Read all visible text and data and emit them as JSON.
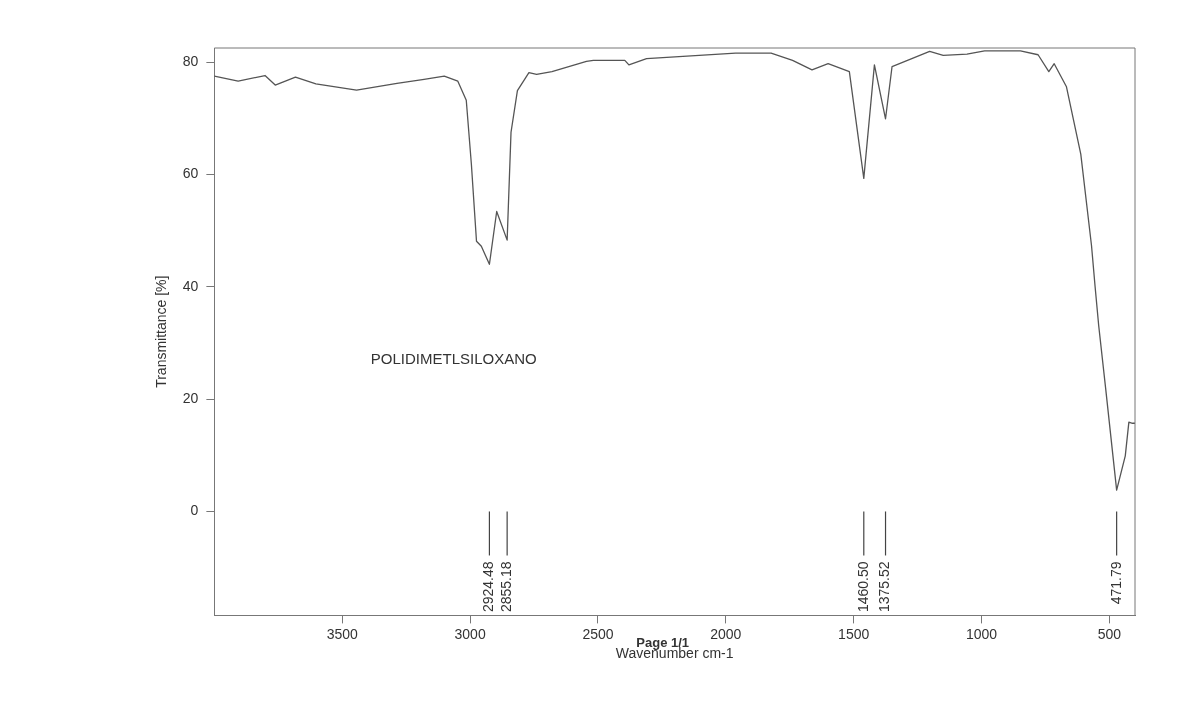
{
  "chart_data": {
    "type": "line",
    "xlabel": "Wavenumber cm-1",
    "ylabel": "Transmittance [%]",
    "xlim": [
      4000,
      400
    ],
    "xticks": [
      3500,
      3000,
      2500,
      2000,
      1500,
      1000,
      500
    ],
    "ylim": [
      -18.5,
      82.5
    ],
    "yticks": [
      0,
      20,
      40,
      60,
      80
    ],
    "marker": "none",
    "line_style": "solid",
    "series": [
      {
        "color": "#555555",
        "x": [
          4000,
          3907,
          3802,
          3762,
          3683,
          3603,
          3444,
          3286,
          3180,
          3101,
          3048,
          3015,
          2995,
          2975,
          2956,
          2924.48,
          2896,
          2855.18,
          2840,
          2815,
          2770,
          2740,
          2680,
          2545,
          2518,
          2395,
          2379,
          2310,
          1962,
          1823,
          1739,
          1663,
          1600,
          1517,
          1460.5,
          1419,
          1375.52,
          1350,
          1203,
          1150,
          1057,
          988,
          848,
          779,
          737,
          716,
          668,
          612,
          570,
          556,
          542,
          515,
          471.79,
          438,
          424,
          410,
          400
        ],
        "values": [
          77.5,
          76.6,
          77.6,
          75.9,
          77.3,
          76.1,
          75.0,
          76.2,
          76.9,
          77.5,
          76.6,
          73.2,
          61.8,
          48.1,
          47.2,
          44.0,
          53.4,
          48.3,
          67.5,
          74.9,
          78.1,
          77.8,
          78.3,
          80.1,
          80.3,
          80.3,
          79.5,
          80.6,
          81.6,
          81.6,
          80.3,
          78.6,
          79.7,
          78.3,
          59.3,
          79.5,
          69.9,
          79.2,
          81.9,
          81.2,
          81.4,
          82.0,
          82.0,
          81.3,
          78.3,
          79.7,
          75.6,
          63.6,
          47.3,
          40.0,
          33.1,
          22.0,
          3.8,
          9.9,
          15.9,
          15.7,
          15.7
        ]
      }
    ],
    "annotations": [
      {
        "text": "2924.48",
        "x": 2924.48
      },
      {
        "text": "2855.18",
        "x": 2855.18
      },
      {
        "text": "1460.50",
        "x": 1460.5
      },
      {
        "text": "1375.52",
        "x": 1375.52
      },
      {
        "text": "471.79",
        "x": 471.79
      },
      "POLIDIMETLSILOXANO",
      "Page 1/1"
    ]
  }
}
